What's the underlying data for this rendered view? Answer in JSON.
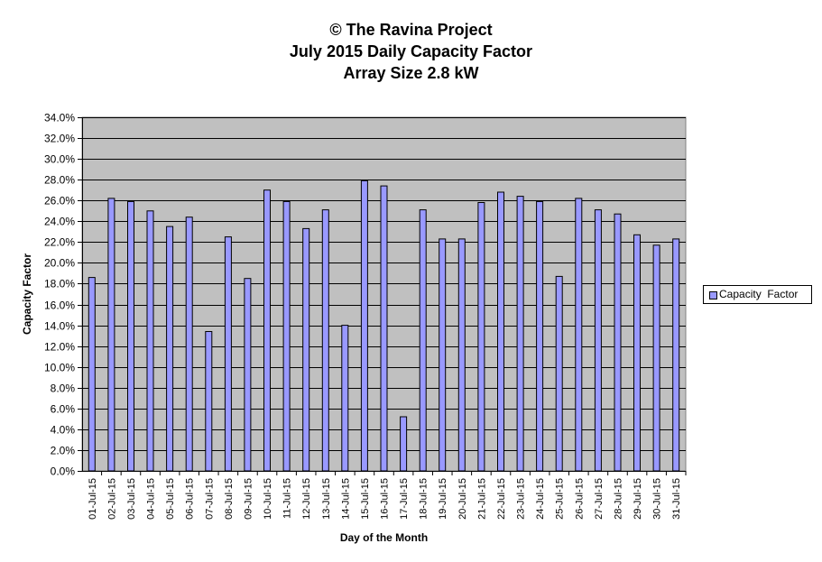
{
  "chart_data": {
    "type": "bar",
    "title_lines": [
      "© The Ravina Project",
      "July 2015 Daily Capacity  Factor",
      "Array Size 2.8 kW"
    ],
    "xlabel": "Day of the Month",
    "ylabel": "Capacity Factor",
    "ylim": [
      0,
      34
    ],
    "ytick_step": 2,
    "ytick_labels": [
      "0.0%",
      "2.0%",
      "4.0%",
      "6.0%",
      "8.0%",
      "10.0%",
      "12.0%",
      "14.0%",
      "16.0%",
      "18.0%",
      "20.0%",
      "22.0%",
      "24.0%",
      "26.0%",
      "28.0%",
      "30.0%",
      "32.0%",
      "34.0%"
    ],
    "grid": true,
    "legend_position": "right",
    "categories": [
      "01-Jul-15",
      "02-Jul-15",
      "03-Jul-15",
      "04-Jul-15",
      "05-Jul-15",
      "06-Jul-15",
      "07-Jul-15",
      "08-Jul-15",
      "09-Jul-15",
      "10-Jul-15",
      "11-Jul-15",
      "12-Jul-15",
      "13-Jul-15",
      "14-Jul-15",
      "15-Jul-15",
      "16-Jul-15",
      "17-Jul-15",
      "18-Jul-15",
      "19-Jul-15",
      "20-Jul-15",
      "21-Jul-15",
      "22-Jul-15",
      "23-Jul-15",
      "24-Jul-15",
      "25-Jul-15",
      "26-Jul-15",
      "27-Jul-15",
      "28-Jul-15",
      "29-Jul-15",
      "30-Jul-15",
      "31-Jul-15"
    ],
    "series": [
      {
        "name": "Capacity  Factor",
        "color": "#9999ff",
        "values": [
          18.6,
          26.2,
          25.9,
          25.0,
          23.5,
          24.4,
          13.4,
          22.5,
          18.5,
          27.0,
          25.9,
          23.3,
          25.1,
          14.0,
          27.9,
          27.4,
          5.2,
          25.1,
          22.3,
          22.3,
          25.8,
          26.8,
          26.4,
          25.9,
          18.7,
          26.2,
          25.1,
          24.7,
          22.7,
          21.7,
          22.3
        ]
      }
    ]
  },
  "colors": {
    "plot_background": "#c0c0c0",
    "bar_fill": "#9999ff",
    "gridline": "#000000"
  }
}
